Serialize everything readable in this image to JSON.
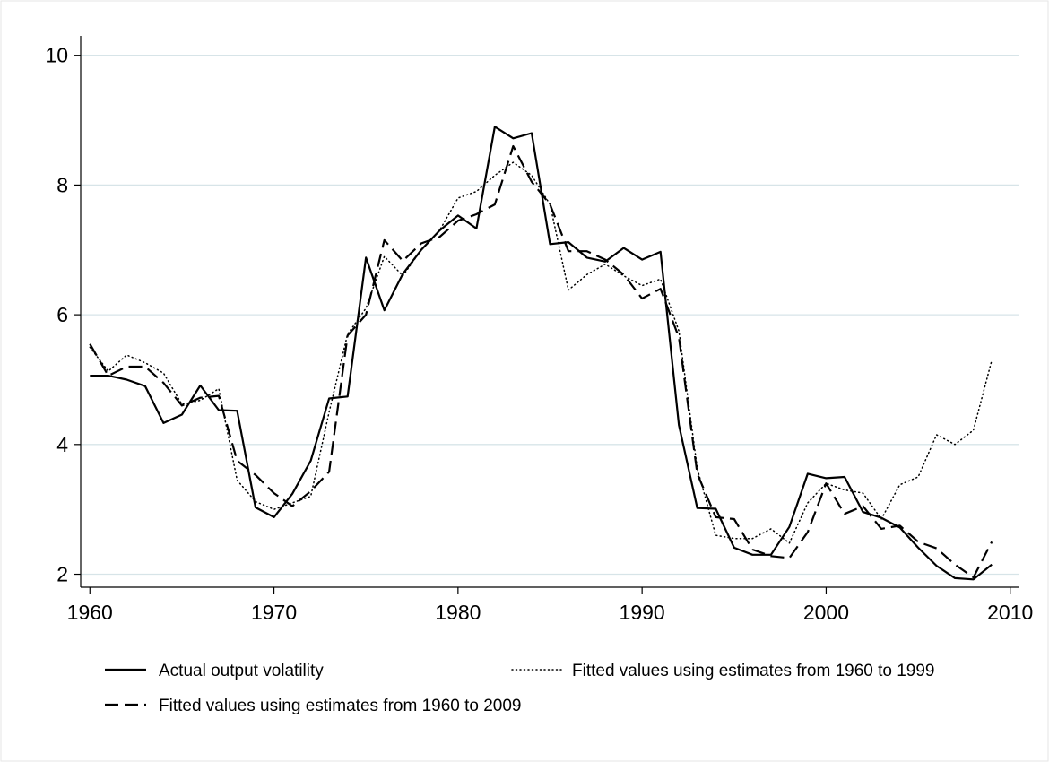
{
  "chart_data": {
    "type": "line",
    "title": "",
    "xlabel": "",
    "ylabel": "",
    "xlim": [
      1959.5,
      2010.5
    ],
    "ylim": [
      1.8,
      10.3
    ],
    "x_ticks": [
      "1960",
      "1970",
      "1980",
      "1990",
      "2000",
      "2010"
    ],
    "y_ticks": [
      "2",
      "4",
      "6",
      "8",
      "10"
    ],
    "grid": "horizontal",
    "legend_position": "bottom",
    "series": [
      {
        "name": "Actual output volatility",
        "style": "solid",
        "x": [
          1960,
          1961,
          1962,
          1963,
          1964,
          1965,
          1966,
          1967,
          1968,
          1969,
          1970,
          1971,
          1972,
          1973,
          1974,
          1975,
          1976,
          1977,
          1978,
          1979,
          1980,
          1981,
          1982,
          1983,
          1984,
          1985,
          1986,
          1987,
          1988,
          1989,
          1990,
          1991,
          1992,
          1993,
          1994,
          1995,
          1996,
          1997,
          1998,
          1999,
          2000,
          2001,
          2002,
          2003,
          2004,
          2005,
          2006,
          2007,
          2008,
          2009
        ],
        "y": [
          5.06,
          5.06,
          5.0,
          4.9,
          4.33,
          4.46,
          4.91,
          4.53,
          4.52,
          3.03,
          2.88,
          3.24,
          3.75,
          4.71,
          4.74,
          6.88,
          6.07,
          6.63,
          7.0,
          7.3,
          7.53,
          7.33,
          8.9,
          8.72,
          8.8,
          7.09,
          7.12,
          6.88,
          6.82,
          7.03,
          6.85,
          6.97,
          4.3,
          3.02,
          3.01,
          2.41,
          2.3,
          2.3,
          2.73,
          3.55,
          3.48,
          3.5,
          2.96,
          2.87,
          2.72,
          2.41,
          2.13,
          1.94,
          1.92,
          2.15
        ]
      },
      {
        "name": "Fitted values using estimates from 1960 to 1999",
        "style": "dotted",
        "x": [
          1960,
          1961,
          1962,
          1963,
          1964,
          1965,
          1966,
          1967,
          1968,
          1969,
          1970,
          1971,
          1972,
          1973,
          1974,
          1975,
          1976,
          1977,
          1978,
          1979,
          1980,
          1981,
          1982,
          1983,
          1984,
          1985,
          1986,
          1987,
          1988,
          1989,
          1990,
          1991,
          1992,
          1993,
          1994,
          1995,
          1996,
          1997,
          1998,
          1999,
          2000,
          2001,
          2002,
          2003,
          2004,
          2005,
          2006,
          2007,
          2008,
          2009
        ],
        "y": [
          5.5,
          5.13,
          5.38,
          5.26,
          5.1,
          4.62,
          4.68,
          4.86,
          3.45,
          3.12,
          3.0,
          3.1,
          3.2,
          4.5,
          5.7,
          6.1,
          6.9,
          6.6,
          7.0,
          7.3,
          7.8,
          7.9,
          8.15,
          8.35,
          8.15,
          7.7,
          6.38,
          6.62,
          6.78,
          6.6,
          6.45,
          6.55,
          5.75,
          3.63,
          2.6,
          2.55,
          2.55,
          2.7,
          2.48,
          3.1,
          3.4,
          3.3,
          3.25,
          2.85,
          3.38,
          3.5,
          4.15,
          4.0,
          4.22,
          5.3
        ]
      },
      {
        "name": "Fitted values using estimates from 1960 to 2009",
        "style": "dashed",
        "x": [
          1960,
          1961,
          1962,
          1963,
          1964,
          1965,
          1966,
          1967,
          1968,
          1969,
          1970,
          1971,
          1972,
          1973,
          1974,
          1975,
          1976,
          1977,
          1978,
          1979,
          1980,
          1981,
          1982,
          1983,
          1984,
          1985,
          1986,
          1987,
          1988,
          1989,
          1990,
          1991,
          1992,
          1993,
          1994,
          1995,
          1996,
          1997,
          1998,
          1999,
          2000,
          2001,
          2002,
          2003,
          2004,
          2005,
          2006,
          2007,
          2008,
          2009
        ],
        "y": [
          5.55,
          5.06,
          5.2,
          5.2,
          4.95,
          4.6,
          4.72,
          4.75,
          3.75,
          3.53,
          3.25,
          3.05,
          3.28,
          3.58,
          5.68,
          6.0,
          7.15,
          6.83,
          7.1,
          7.2,
          7.45,
          7.55,
          7.7,
          8.6,
          8.05,
          7.7,
          6.98,
          6.98,
          6.85,
          6.62,
          6.25,
          6.4,
          5.65,
          3.55,
          2.88,
          2.85,
          2.38,
          2.28,
          2.25,
          2.65,
          3.4,
          2.93,
          3.05,
          2.7,
          2.75,
          2.5,
          2.4,
          2.15,
          1.95,
          2.5
        ]
      }
    ]
  }
}
